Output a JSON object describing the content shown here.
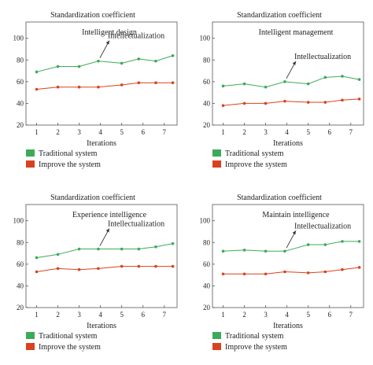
{
  "colors": {
    "traditional": "#3daa5a",
    "improved": "#d9421e",
    "frame": "#555555",
    "arrow": "#333333"
  },
  "chart_data": [
    {
      "type": "line",
      "title": "Standardization coefficient",
      "inner_title": "Intelligent design",
      "annotation": "Intellectualization",
      "xlabel": "Iterations",
      "x_ticks": [
        1,
        2,
        3,
        4,
        5,
        6,
        7
      ],
      "y_ticks": [
        20,
        40,
        60,
        80,
        100
      ],
      "ylim": [
        20,
        115
      ],
      "xlim": [
        0.5,
        7.6
      ],
      "series": [
        {
          "name": "Traditional system",
          "x": [
            1,
            2,
            3,
            3.9,
            5,
            5.8,
            6.6,
            7.4
          ],
          "values": [
            69,
            74,
            74,
            79,
            77,
            81,
            79,
            84
          ]
        },
        {
          "name": "Improve the system",
          "x": [
            1,
            2,
            3,
            3.9,
            5,
            5.8,
            6.6,
            7.4
          ],
          "values": [
            53,
            55,
            55,
            55,
            57,
            59,
            59,
            59
          ]
        }
      ]
    },
    {
      "type": "line",
      "title": "Standardization coefficient",
      "inner_title": "Intelligent management",
      "annotation": "Intellectualization",
      "xlabel": "Iterations",
      "x_ticks": [
        1,
        2,
        3,
        4,
        5,
        6,
        7
      ],
      "y_ticks": [
        20,
        40,
        60,
        80,
        100
      ],
      "ylim": [
        20,
        115
      ],
      "xlim": [
        0.5,
        7.6
      ],
      "series": [
        {
          "name": "Traditional system",
          "x": [
            1,
            2,
            3,
            3.9,
            5,
            5.8,
            6.6,
            7.4
          ],
          "values": [
            56,
            58,
            55,
            60,
            58,
            64,
            65,
            62
          ]
        },
        {
          "name": "Improve the system",
          "x": [
            1,
            2,
            3,
            3.9,
            5,
            5.8,
            6.6,
            7.4
          ],
          "values": [
            38,
            40,
            40,
            42,
            41,
            41,
            43,
            44
          ]
        }
      ]
    },
    {
      "type": "line",
      "title": "Standardization coefficient",
      "inner_title": "Experience intelligence",
      "annotation": "Intellectualization",
      "xlabel": "Iterations",
      "x_ticks": [
        1,
        2,
        3,
        4,
        5,
        6,
        7
      ],
      "y_ticks": [
        20,
        40,
        60,
        80,
        100
      ],
      "ylim": [
        20,
        115
      ],
      "xlim": [
        0.5,
        7.6
      ],
      "series": [
        {
          "name": "Traditional system",
          "x": [
            1,
            2,
            3,
            3.9,
            5,
            5.8,
            6.6,
            7.4
          ],
          "values": [
            66,
            69,
            74,
            74,
            74,
            74,
            76,
            79
          ]
        },
        {
          "name": "Improve the system",
          "x": [
            1,
            2,
            3,
            3.9,
            5,
            5.8,
            6.6,
            7.4
          ],
          "values": [
            53,
            56,
            55,
            56,
            58,
            58,
            58,
            58
          ]
        }
      ]
    },
    {
      "type": "line",
      "title": "Standardization coefficient",
      "inner_title": "Maintain intelligence",
      "annotation": "Intellectualization",
      "xlabel": "Iterations",
      "x_ticks": [
        1,
        2,
        3,
        4,
        5,
        6,
        7
      ],
      "y_ticks": [
        20,
        40,
        60,
        80,
        100
      ],
      "ylim": [
        20,
        115
      ],
      "xlim": [
        0.5,
        7.6
      ],
      "series": [
        {
          "name": "Traditional system",
          "x": [
            1,
            2,
            3,
            3.9,
            5,
            5.8,
            6.6,
            7.4
          ],
          "values": [
            72,
            73,
            72,
            72,
            78,
            78,
            81,
            81
          ]
        },
        {
          "name": "Improve the system",
          "x": [
            1,
            2,
            3,
            3.9,
            5,
            5.8,
            6.6,
            7.4
          ],
          "values": [
            51,
            51,
            51,
            53,
            52,
            53,
            55,
            57
          ]
        }
      ]
    }
  ]
}
